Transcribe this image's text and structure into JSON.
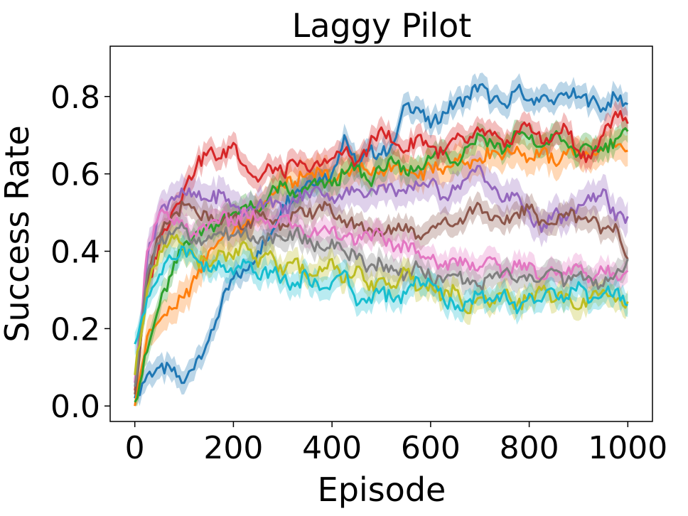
{
  "chart_data": {
    "type": "line",
    "title": "Laggy Pilot",
    "xlabel": "Episode",
    "ylabel": "Success Rate",
    "xlim": [
      -50,
      1050
    ],
    "ylim": [
      -0.04,
      0.93
    ],
    "xticks": [
      0,
      200,
      400,
      600,
      800,
      1000
    ],
    "xtick_labels": [
      "0",
      "200",
      "400",
      "600",
      "800",
      "1000"
    ],
    "yticks": [
      0.0,
      0.2,
      0.4,
      0.6,
      0.8
    ],
    "ytick_labels": [
      "0.0",
      "0.2",
      "0.4",
      "0.6",
      "0.8"
    ],
    "grid": false,
    "legend": "none",
    "shaded_band": true,
    "series": [
      {
        "color": "#1f77b4",
        "band": 0.03,
        "x": [
          0,
          25,
          50,
          75,
          100,
          125,
          150,
          175,
          200,
          225,
          250,
          275,
          300,
          325,
          350,
          375,
          400,
          425,
          450,
          475,
          500,
          525,
          550,
          575,
          600,
          625,
          650,
          675,
          700,
          725,
          750,
          775,
          800,
          825,
          850,
          875,
          900,
          925,
          950,
          975,
          1000
        ],
        "values": [
          0.02,
          0.08,
          0.1,
          0.09,
          0.06,
          0.12,
          0.17,
          0.26,
          0.33,
          0.35,
          0.4,
          0.44,
          0.52,
          0.55,
          0.58,
          0.59,
          0.6,
          0.7,
          0.62,
          0.66,
          0.65,
          0.68,
          0.78,
          0.77,
          0.72,
          0.76,
          0.78,
          0.8,
          0.83,
          0.79,
          0.78,
          0.82,
          0.79,
          0.8,
          0.78,
          0.81,
          0.8,
          0.79,
          0.77,
          0.8,
          0.78
        ]
      },
      {
        "color": "#ff7f0e",
        "band": 0.04,
        "x": [
          0,
          25,
          50,
          75,
          100,
          125,
          150,
          175,
          200,
          225,
          250,
          275,
          300,
          325,
          350,
          375,
          400,
          425,
          450,
          475,
          500,
          525,
          550,
          575,
          600,
          625,
          650,
          675,
          700,
          725,
          750,
          775,
          800,
          825,
          850,
          875,
          900,
          925,
          950,
          975,
          1000
        ],
        "values": [
          0.0,
          0.18,
          0.22,
          0.25,
          0.28,
          0.33,
          0.4,
          0.43,
          0.45,
          0.47,
          0.5,
          0.55,
          0.57,
          0.58,
          0.6,
          0.61,
          0.58,
          0.6,
          0.62,
          0.6,
          0.61,
          0.62,
          0.61,
          0.59,
          0.62,
          0.6,
          0.64,
          0.63,
          0.64,
          0.66,
          0.65,
          0.67,
          0.64,
          0.66,
          0.63,
          0.65,
          0.66,
          0.64,
          0.66,
          0.67,
          0.66
        ]
      },
      {
        "color": "#2ca02c",
        "band": 0.03,
        "x": [
          0,
          25,
          50,
          75,
          100,
          125,
          150,
          175,
          200,
          225,
          250,
          275,
          300,
          325,
          350,
          375,
          400,
          425,
          450,
          475,
          500,
          525,
          550,
          575,
          600,
          625,
          650,
          675,
          700,
          725,
          750,
          775,
          800,
          825,
          850,
          875,
          900,
          925,
          950,
          975,
          1000
        ],
        "values": [
          0.01,
          0.14,
          0.26,
          0.34,
          0.42,
          0.45,
          0.46,
          0.48,
          0.5,
          0.52,
          0.5,
          0.55,
          0.57,
          0.54,
          0.56,
          0.58,
          0.57,
          0.6,
          0.62,
          0.58,
          0.61,
          0.63,
          0.6,
          0.62,
          0.64,
          0.66,
          0.63,
          0.67,
          0.7,
          0.68,
          0.66,
          0.71,
          0.69,
          0.67,
          0.7,
          0.68,
          0.65,
          0.67,
          0.66,
          0.69,
          0.71
        ]
      },
      {
        "color": "#d62728",
        "band": 0.03,
        "x": [
          0,
          25,
          50,
          75,
          100,
          125,
          150,
          175,
          200,
          225,
          250,
          275,
          300,
          325,
          350,
          375,
          400,
          425,
          450,
          475,
          500,
          525,
          550,
          575,
          600,
          625,
          650,
          675,
          700,
          725,
          750,
          775,
          800,
          825,
          850,
          875,
          900,
          925,
          950,
          975,
          1000
        ],
        "values": [
          0.04,
          0.3,
          0.42,
          0.5,
          0.56,
          0.62,
          0.66,
          0.64,
          0.68,
          0.62,
          0.58,
          0.62,
          0.6,
          0.63,
          0.61,
          0.62,
          0.64,
          0.66,
          0.63,
          0.67,
          0.72,
          0.68,
          0.66,
          0.7,
          0.67,
          0.65,
          0.69,
          0.68,
          0.71,
          0.7,
          0.67,
          0.71,
          0.73,
          0.68,
          0.7,
          0.72,
          0.66,
          0.64,
          0.7,
          0.76,
          0.73
        ]
      },
      {
        "color": "#9467bd",
        "band": 0.04,
        "x": [
          0,
          25,
          50,
          75,
          100,
          125,
          150,
          175,
          200,
          225,
          250,
          275,
          300,
          325,
          350,
          375,
          400,
          425,
          450,
          475,
          500,
          525,
          550,
          575,
          600,
          625,
          650,
          675,
          700,
          725,
          750,
          775,
          800,
          825,
          850,
          875,
          900,
          925,
          950,
          975,
          1000
        ],
        "values": [
          0.06,
          0.38,
          0.5,
          0.54,
          0.55,
          0.54,
          0.53,
          0.55,
          0.52,
          0.5,
          0.52,
          0.54,
          0.5,
          0.53,
          0.55,
          0.56,
          0.54,
          0.55,
          0.56,
          0.55,
          0.57,
          0.56,
          0.55,
          0.57,
          0.58,
          0.54,
          0.56,
          0.59,
          0.62,
          0.56,
          0.53,
          0.55,
          0.5,
          0.45,
          0.5,
          0.48,
          0.52,
          0.53,
          0.56,
          0.48,
          0.49
        ]
      },
      {
        "color": "#8c564b",
        "band": 0.03,
        "x": [
          0,
          25,
          50,
          75,
          100,
          125,
          150,
          175,
          200,
          225,
          250,
          275,
          300,
          325,
          350,
          375,
          400,
          425,
          450,
          475,
          500,
          525,
          550,
          575,
          600,
          625,
          650,
          675,
          700,
          725,
          750,
          775,
          800,
          825,
          850,
          875,
          900,
          925,
          950,
          975,
          1000
        ],
        "values": [
          0.03,
          0.32,
          0.44,
          0.49,
          0.52,
          0.5,
          0.48,
          0.47,
          0.49,
          0.46,
          0.5,
          0.48,
          0.47,
          0.5,
          0.49,
          0.52,
          0.5,
          0.48,
          0.47,
          0.46,
          0.44,
          0.46,
          0.47,
          0.44,
          0.46,
          0.48,
          0.47,
          0.5,
          0.52,
          0.48,
          0.47,
          0.5,
          0.51,
          0.48,
          0.47,
          0.5,
          0.49,
          0.48,
          0.46,
          0.47,
          0.38
        ]
      },
      {
        "color": "#e377c2",
        "band": 0.03,
        "x": [
          0,
          25,
          50,
          75,
          100,
          125,
          150,
          175,
          200,
          225,
          250,
          275,
          300,
          325,
          350,
          375,
          400,
          425,
          450,
          475,
          500,
          525,
          550,
          575,
          600,
          625,
          650,
          675,
          700,
          725,
          750,
          775,
          800,
          825,
          850,
          875,
          900,
          925,
          950,
          975,
          1000
        ],
        "values": [
          0.06,
          0.4,
          0.5,
          0.48,
          0.46,
          0.44,
          0.47,
          0.49,
          0.47,
          0.5,
          0.48,
          0.46,
          0.49,
          0.47,
          0.44,
          0.45,
          0.46,
          0.44,
          0.42,
          0.44,
          0.45,
          0.4,
          0.42,
          0.4,
          0.38,
          0.36,
          0.38,
          0.37,
          0.36,
          0.38,
          0.34,
          0.36,
          0.37,
          0.33,
          0.35,
          0.34,
          0.36,
          0.33,
          0.35,
          0.34,
          0.35
        ]
      },
      {
        "color": "#7f7f7f",
        "band": 0.03,
        "x": [
          0,
          25,
          50,
          75,
          100,
          125,
          150,
          175,
          200,
          225,
          250,
          275,
          300,
          325,
          350,
          375,
          400,
          425,
          450,
          475,
          500,
          525,
          550,
          575,
          600,
          625,
          650,
          675,
          700,
          725,
          750,
          775,
          800,
          825,
          850,
          875,
          900,
          925,
          950,
          975,
          1000
        ],
        "values": [
          0.05,
          0.34,
          0.42,
          0.44,
          0.46,
          0.42,
          0.44,
          0.45,
          0.44,
          0.46,
          0.42,
          0.44,
          0.43,
          0.45,
          0.42,
          0.41,
          0.43,
          0.4,
          0.38,
          0.36,
          0.37,
          0.35,
          0.34,
          0.36,
          0.33,
          0.32,
          0.34,
          0.33,
          0.31,
          0.33,
          0.35,
          0.32,
          0.34,
          0.33,
          0.35,
          0.32,
          0.34,
          0.33,
          0.31,
          0.34,
          0.38
        ]
      },
      {
        "color": "#bcbd22",
        "band": 0.03,
        "x": [
          0,
          25,
          50,
          75,
          100,
          125,
          150,
          175,
          200,
          225,
          250,
          275,
          300,
          325,
          350,
          375,
          400,
          425,
          450,
          475,
          500,
          525,
          550,
          575,
          600,
          625,
          650,
          675,
          700,
          725,
          750,
          775,
          800,
          825,
          850,
          875,
          900,
          925,
          950,
          975,
          1000
        ],
        "values": [
          0.08,
          0.3,
          0.4,
          0.44,
          0.4,
          0.38,
          0.36,
          0.4,
          0.38,
          0.42,
          0.36,
          0.4,
          0.34,
          0.38,
          0.33,
          0.36,
          0.38,
          0.32,
          0.36,
          0.3,
          0.33,
          0.31,
          0.35,
          0.3,
          0.32,
          0.28,
          0.3,
          0.24,
          0.28,
          0.27,
          0.3,
          0.26,
          0.28,
          0.3,
          0.27,
          0.29,
          0.25,
          0.28,
          0.3,
          0.27,
          0.27
        ]
      },
      {
        "color": "#17becf",
        "band": 0.03,
        "x": [
          0,
          25,
          50,
          75,
          100,
          125,
          150,
          175,
          200,
          225,
          250,
          275,
          300,
          325,
          350,
          375,
          400,
          425,
          450,
          475,
          500,
          525,
          550,
          575,
          600,
          625,
          650,
          675,
          700,
          725,
          750,
          775,
          800,
          825,
          850,
          875,
          900,
          925,
          950,
          975,
          1000
        ],
        "values": [
          0.16,
          0.28,
          0.34,
          0.38,
          0.41,
          0.38,
          0.35,
          0.36,
          0.34,
          0.37,
          0.33,
          0.35,
          0.33,
          0.31,
          0.34,
          0.3,
          0.32,
          0.35,
          0.26,
          0.28,
          0.3,
          0.27,
          0.29,
          0.33,
          0.32,
          0.28,
          0.25,
          0.27,
          0.29,
          0.27,
          0.3,
          0.24,
          0.29,
          0.27,
          0.3,
          0.28,
          0.32,
          0.27,
          0.29,
          0.3,
          0.26
        ]
      }
    ]
  }
}
